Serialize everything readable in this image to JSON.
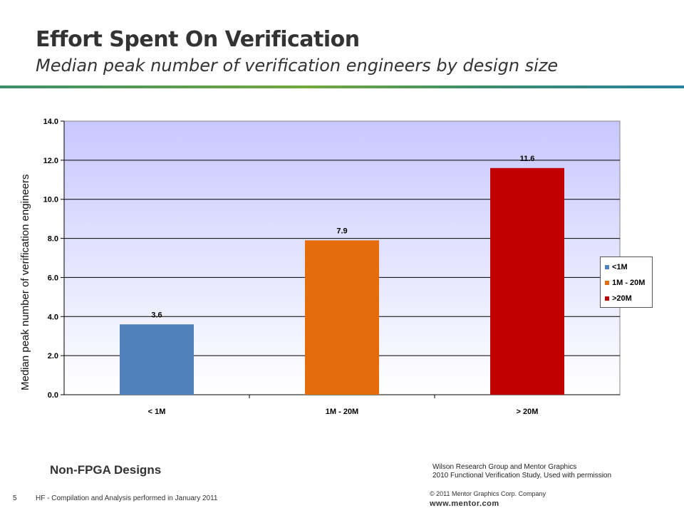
{
  "slide": {
    "title": "Effort Spent On Verification",
    "subtitle": "Median peak number of verification engineers by design size",
    "note": "Non-FPGA Designs",
    "source_line1": "Wilson Research Group and Mentor Graphics",
    "source_line2": "2010 Functional Verification Study,  Used with permission",
    "page_number": "5",
    "footer": "HF - Compilation and Analysis performed in January 2011",
    "copyright": "© 2011 Mentor Graphics Corp. Company",
    "website": "www.mentor.com"
  },
  "chart_data": {
    "type": "bar",
    "categories": [
      "< 1M",
      "1M - 20M",
      "> 20M"
    ],
    "values": [
      3.6,
      7.9,
      11.6
    ],
    "data_labels": [
      "3.6",
      "7.9",
      "11.6"
    ],
    "colors": [
      "#4f81bd",
      "#e46c0a",
      "#c00000"
    ],
    "ylabel": "Median peak number of verification engineers",
    "ylim": [
      0,
      14
    ],
    "yticks": [
      "0.0",
      "2.0",
      "4.0",
      "6.0",
      "8.0",
      "10.0",
      "12.0",
      "14.0"
    ],
    "grid": true,
    "plot_background": [
      "#c8c8ff",
      "#ffffff"
    ],
    "legend": {
      "placement": "right",
      "entries": [
        "<1M",
        "1M - 20M",
        ">20M"
      ]
    }
  }
}
